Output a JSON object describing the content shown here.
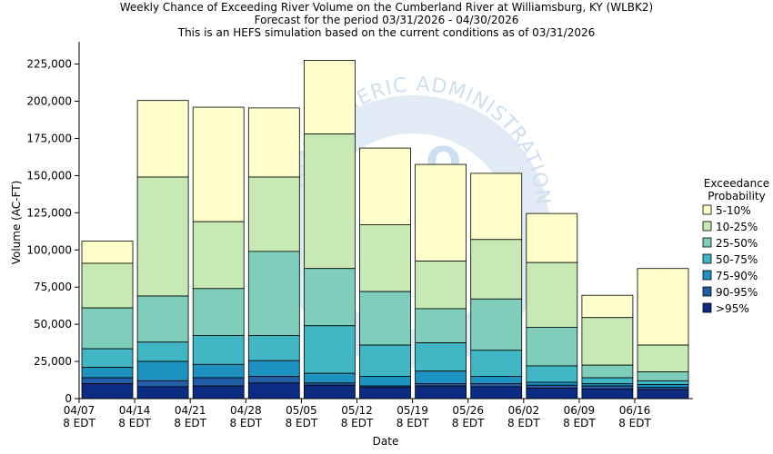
{
  "chart_data": {
    "type": "bar",
    "title": [
      "Weekly Chance of Exceeding River Volume on the Cumberland River at Williamsburg, KY (WLBK2)",
      "Forecast for the period 03/31/2026 - 04/30/2026",
      "This is an HEFS simulation based on the current conditions as of 03/31/2026"
    ],
    "xlabel": "Date",
    "ylabel": "Volume (AC-FT)",
    "ylim": [
      0,
      240000
    ],
    "yticks": [
      "0",
      "25,000",
      "50,000",
      "75,000",
      "100,000",
      "125,000",
      "150,000",
      "175,000",
      "200,000",
      "225,000"
    ],
    "ytick_values": [
      0,
      25000,
      50000,
      75000,
      100000,
      125000,
      150000,
      175000,
      200000,
      225000
    ],
    "xticks": [
      {
        "date": "04/07",
        "tz": "8 EDT"
      },
      {
        "date": "04/14",
        "tz": "8 EDT"
      },
      {
        "date": "04/21",
        "tz": "8 EDT"
      },
      {
        "date": "04/28",
        "tz": "8 EDT"
      },
      {
        "date": "05/05",
        "tz": "8 EDT"
      },
      {
        "date": "05/12",
        "tz": "8 EDT"
      },
      {
        "date": "05/19",
        "tz": "8 EDT"
      },
      {
        "date": "05/26",
        "tz": "8 EDT"
      },
      {
        "date": "06/02",
        "tz": "8 EDT"
      },
      {
        "date": "06/09",
        "tz": "8 EDT"
      },
      {
        "date": "06/16",
        "tz": "8 EDT"
      }
    ],
    "categories": [
      "04/07",
      "04/14",
      "04/21",
      "04/28",
      "05/05",
      "05/12",
      "05/19",
      "05/26",
      "06/02",
      "06/09",
      "06/16"
    ],
    "legend": {
      "title": [
        "Exceedance",
        "Probability"
      ],
      "placement": "right",
      "entries": [
        {
          "label": "5-10%",
          "color": "#ffffcc"
        },
        {
          "label": "10-25%",
          "color": "#c7e9b4"
        },
        {
          "label": "25-50%",
          "color": "#7fcdbb"
        },
        {
          "label": "50-75%",
          "color": "#41b6c4"
        },
        {
          "label": "75-90%",
          "color": "#1d91c0"
        },
        {
          "label": "90-95%",
          "color": "#225ea8"
        },
        {
          "label": ">95%",
          "color": "#0c2c84"
        }
      ]
    },
    "series": [
      {
        "name": ">95%",
        "color": "#0c2c84",
        "values": [
          10000,
          8000,
          8500,
          10500,
          9000,
          7500,
          8500,
          8000,
          7000,
          6500,
          6000
        ]
      },
      {
        "name": "90-95%",
        "color": "#225ea8",
        "values": [
          14000,
          12000,
          14000,
          15000,
          10500,
          8500,
          10000,
          10000,
          9000,
          8500,
          7500
        ]
      },
      {
        "name": "75-90%",
        "color": "#1d91c0",
        "values": [
          21000,
          25000,
          23000,
          25500,
          17000,
          15000,
          18500,
          15000,
          11000,
          10000,
          9500
        ]
      },
      {
        "name": "50-75%",
        "color": "#41b6c4",
        "values": [
          33500,
          38000,
          42500,
          42500,
          49000,
          36000,
          37500,
          32500,
          22000,
          14000,
          12000
        ]
      },
      {
        "name": "25-50%",
        "color": "#7fcdbb",
        "values": [
          61000,
          69000,
          74000,
          99000,
          87500,
          72000,
          60500,
          67000,
          48000,
          22500,
          18000
        ]
      },
      {
        "name": "10-25%",
        "color": "#c7e9b4",
        "values": [
          91000,
          149000,
          119000,
          149000,
          178000,
          117000,
          92500,
          107000,
          91500,
          54500,
          36000
        ]
      },
      {
        "name": "5-10%",
        "color": "#ffffcc",
        "values": [
          106000,
          200500,
          196000,
          195500,
          227500,
          168500,
          157500,
          151500,
          124500,
          69500,
          87500
        ]
      }
    ],
    "watermark_text": "ATMOSPHERIC ADMINISTRATION",
    "watermark_partial": "O",
    "colors": {
      "axis": "#000000",
      "bar_outline": "#000000",
      "watermark": "#c9dcef"
    },
    "grid": false
  }
}
